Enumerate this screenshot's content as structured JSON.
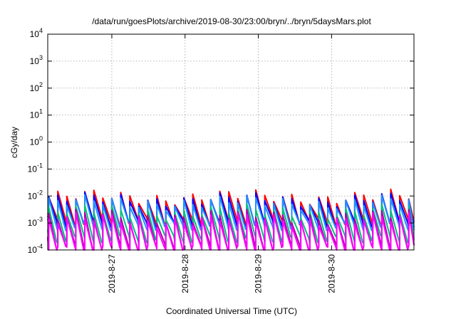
{
  "chart_data": {
    "type": "line",
    "title": "/data/run/goesPlots/archive/2019-08-30/23:00/bryn/../bryn/5daysMars.plot",
    "xlabel": "Coordinated Universal Time (UTC)",
    "ylabel": "cGy/day",
    "yscale": "log",
    "ylim": [
      0.0001,
      10000
    ],
    "y_ticks": [
      {
        "base": "10",
        "exp": "-4",
        "value": 0.0001
      },
      {
        "base": "10",
        "exp": "-3",
        "value": 0.001
      },
      {
        "base": "10",
        "exp": "-2",
        "value": 0.01
      },
      {
        "base": "10",
        "exp": "-1",
        "value": 0.1
      },
      {
        "base": "10",
        "exp": "0",
        "value": 1
      },
      {
        "base": "10",
        "exp": "1",
        "value": 10
      },
      {
        "base": "10",
        "exp": "2",
        "value": 100
      },
      {
        "base": "10",
        "exp": "3",
        "value": 1000
      },
      {
        "base": "10",
        "exp": "4",
        "value": 10000
      }
    ],
    "xlim": [
      "2019-08-26T03:00",
      "2019-08-31T03:00"
    ],
    "x_ticks": [
      {
        "label": "2019-8-27",
        "value": "2019-08-27T00:00"
      },
      {
        "label": "2019-8-28",
        "value": "2019-08-28T00:00"
      },
      {
        "label": "2019-8-29",
        "value": "2019-08-29T00:00"
      },
      {
        "label": "2019-8-30",
        "value": "2019-08-30T00:00"
      }
    ],
    "grid": true,
    "legend": "none",
    "pattern": "sawtooth: each trace jumps up near its peak at ~3 h intervals then decays to its trough; vertical = instantaneous jump",
    "series": [
      {
        "color": "#ff0000",
        "peak": 0.009,
        "trough": 0.0011
      },
      {
        "color": "#0000ff",
        "peak": 0.0072,
        "trough": 0.0009
      },
      {
        "color": "#1e90ff",
        "peak": 0.0056,
        "trough": 0.0007
      },
      {
        "color": "#00c080",
        "peak": 0.0026,
        "trough": 0.00025
      },
      {
        "color": "#aa00aa",
        "peak": 0.0017,
        "trough": 0.00012
      },
      {
        "color": "#ff00ff",
        "peak": 0.0013,
        "trough": 0.0001
      }
    ]
  }
}
